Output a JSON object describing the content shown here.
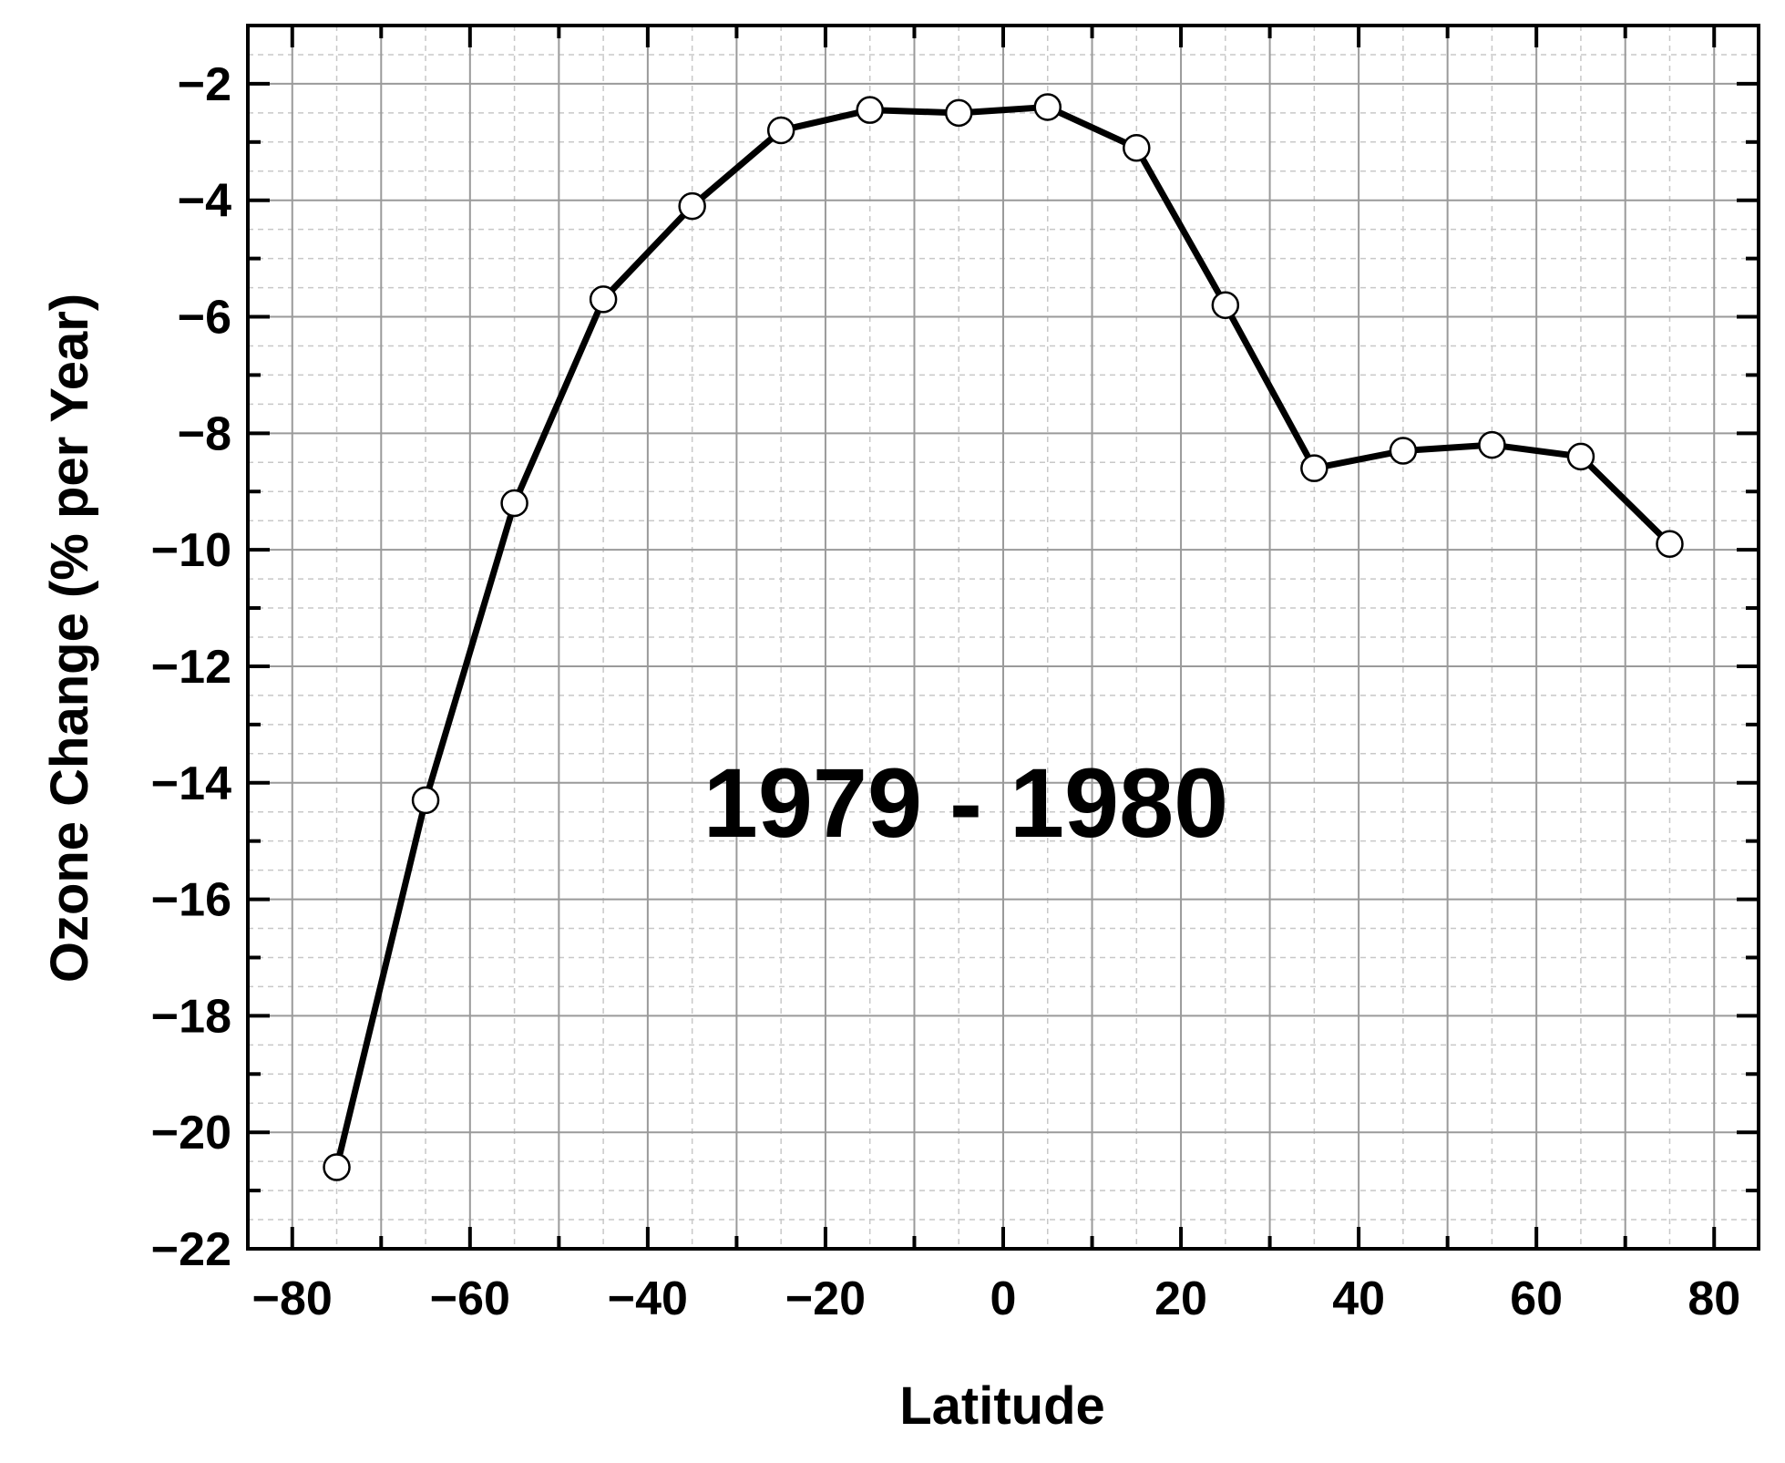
{
  "chart_data": {
    "type": "line",
    "title": "",
    "xlabel": "Latitude",
    "ylabel": "Ozone Change (% per Year)",
    "annotation": "1979 - 1980",
    "xlim": [
      -85,
      85
    ],
    "ylim": [
      -22,
      -1
    ],
    "x_ticks": [
      -80,
      -60,
      -40,
      -20,
      0,
      20,
      40,
      60,
      80
    ],
    "y_ticks": [
      -2,
      -4,
      -6,
      -8,
      -10,
      -12,
      -14,
      -16,
      -18,
      -20,
      -22
    ],
    "x_tick_labels": [
      "−80",
      "−60",
      "−40",
      "−20",
      "0",
      "20",
      "40",
      "60",
      "80"
    ],
    "y_tick_labels": [
      "−2",
      "−4",
      "−6",
      "−8",
      "−10",
      "−12",
      "−14",
      "−16",
      "−18",
      "−20",
      "−22"
    ],
    "grid": true,
    "series": [
      {
        "x": [
          -75,
          -65,
          -55,
          -45,
          -35,
          -25,
          -15,
          -5,
          5,
          15,
          25,
          35,
          45,
          55,
          65,
          75
        ],
        "y": [
          -20.6,
          -14.3,
          -9.2,
          -5.7,
          -4.1,
          -2.8,
          -2.45,
          -2.5,
          -2.4,
          -3.1,
          -5.8,
          -8.6,
          -8.3,
          -8.2,
          -8.4,
          -9.9
        ]
      }
    ],
    "colors": {
      "line": "#000000",
      "marker_fill": "#ffffff",
      "marker_stroke": "#000000",
      "grid_major": "#9a9a9a",
      "grid_minor": "#c8c8c8"
    }
  }
}
